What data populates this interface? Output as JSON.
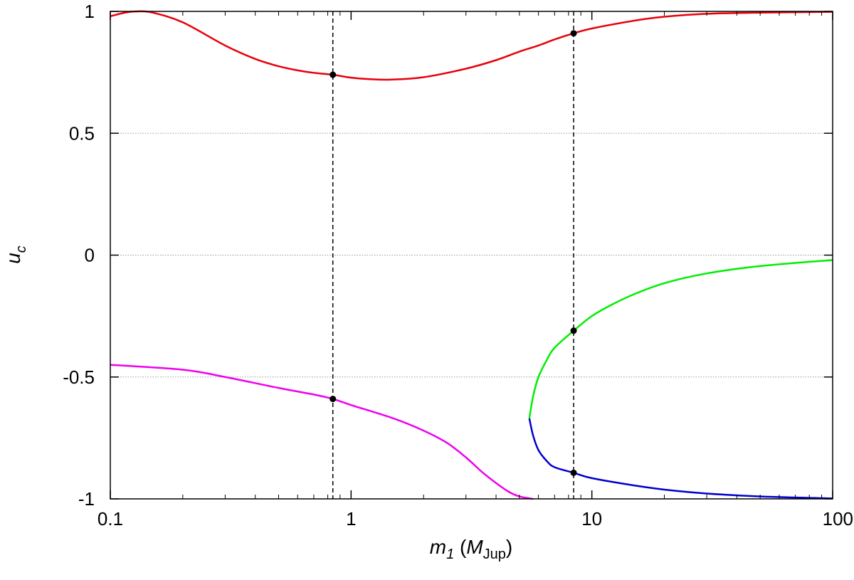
{
  "chart_data": {
    "type": "line",
    "x_scale": "log",
    "xlim": [
      0.1,
      100
    ],
    "ylim": [
      -1,
      1
    ],
    "grid": {
      "horizontal": true,
      "vertical": false
    },
    "ylabel": "u",
    "ylabel_sub": "c",
    "xlabel": {
      "var": "m",
      "var_sub": "1",
      "open": " (",
      "unit": "M",
      "unit_sub": "Jup",
      "close": ")"
    },
    "x_ticks": [
      "0.1",
      "1",
      "10",
      "100"
    ],
    "x_tick_values": [
      0.1,
      1,
      10,
      100
    ],
    "y_ticks": [
      "-1",
      "-0.5",
      "0",
      "0.5",
      "1"
    ],
    "y_tick_values": [
      -1,
      -0.5,
      0,
      0.5,
      1
    ],
    "vlines": [
      0.84,
      8.4
    ],
    "colors": {
      "red": "#e8000b",
      "magenta": "#ee00ee",
      "green": "#00ee00",
      "blue": "#0000cc",
      "marker": "#000000"
    },
    "series": [
      {
        "color": "red",
        "points": [
          [
            0.1,
            0.98
          ],
          [
            0.115,
            0.995
          ],
          [
            0.13,
            1.0
          ],
          [
            0.15,
            0.995
          ],
          [
            0.2,
            0.955
          ],
          [
            0.3,
            0.86
          ],
          [
            0.4,
            0.805
          ],
          [
            0.5,
            0.775
          ],
          [
            0.6,
            0.758
          ],
          [
            0.7,
            0.748
          ],
          [
            0.84,
            0.74
          ],
          [
            1.0,
            0.728
          ],
          [
            1.2,
            0.722
          ],
          [
            1.45,
            0.72
          ],
          [
            2.0,
            0.73
          ],
          [
            3.0,
            0.765
          ],
          [
            4.0,
            0.8
          ],
          [
            5.0,
            0.835
          ],
          [
            6.0,
            0.86
          ],
          [
            7.0,
            0.885
          ],
          [
            8.4,
            0.91
          ],
          [
            10,
            0.93
          ],
          [
            15,
            0.962
          ],
          [
            20,
            0.978
          ],
          [
            30,
            0.99
          ],
          [
            50,
            0.995
          ],
          [
            100,
            0.998
          ]
        ]
      },
      {
        "color": "magenta",
        "points": [
          [
            0.1,
            -0.45
          ],
          [
            0.2,
            -0.47
          ],
          [
            0.3,
            -0.5
          ],
          [
            0.5,
            -0.545
          ],
          [
            0.7,
            -0.572
          ],
          [
            0.84,
            -0.59
          ],
          [
            1.0,
            -0.615
          ],
          [
            1.5,
            -0.67
          ],
          [
            2.0,
            -0.72
          ],
          [
            2.5,
            -0.77
          ],
          [
            3.0,
            -0.83
          ],
          [
            3.5,
            -0.89
          ],
          [
            4.0,
            -0.935
          ],
          [
            4.5,
            -0.97
          ],
          [
            5.0,
            -0.99
          ],
          [
            5.7,
            -1.0
          ]
        ]
      },
      {
        "color": "green",
        "points": [
          [
            5.5,
            -0.67
          ],
          [
            5.7,
            -0.58
          ],
          [
            6.0,
            -0.5
          ],
          [
            6.5,
            -0.43
          ],
          [
            7.0,
            -0.38
          ],
          [
            8.4,
            -0.31
          ],
          [
            10,
            -0.25
          ],
          [
            12,
            -0.205
          ],
          [
            15,
            -0.16
          ],
          [
            20,
            -0.115
          ],
          [
            30,
            -0.075
          ],
          [
            50,
            -0.045
          ],
          [
            100,
            -0.02
          ]
        ]
      },
      {
        "color": "blue",
        "points": [
          [
            5.5,
            -0.67
          ],
          [
            5.7,
            -0.74
          ],
          [
            6.0,
            -0.8
          ],
          [
            6.5,
            -0.845
          ],
          [
            7.0,
            -0.87
          ],
          [
            8.4,
            -0.893
          ],
          [
            10,
            -0.915
          ],
          [
            15,
            -0.945
          ],
          [
            20,
            -0.962
          ],
          [
            30,
            -0.978
          ],
          [
            50,
            -0.99
          ],
          [
            100,
            -0.998
          ]
        ]
      }
    ],
    "markers": [
      [
        0.84,
        0.74
      ],
      [
        0.84,
        -0.59
      ],
      [
        8.4,
        0.91
      ],
      [
        8.4,
        -0.31
      ],
      [
        8.4,
        -0.893
      ]
    ]
  }
}
